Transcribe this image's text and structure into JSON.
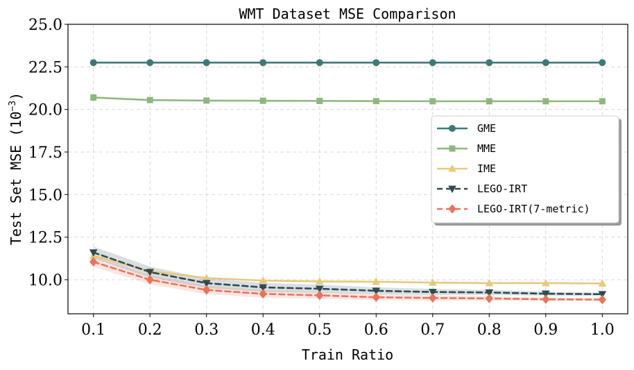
{
  "chart_data": {
    "type": "line",
    "title": "WMT Dataset MSE Comparison",
    "xlabel": "Train Ratio",
    "ylabel": "Test Set MSE (10",
    "ylabel_exponent": "−3",
    "ylabel_close": ")",
    "x": [
      0.1,
      0.2,
      0.3,
      0.4,
      0.5,
      0.6,
      0.7,
      0.8,
      0.9,
      1.0
    ],
    "x_tick_labels": [
      "0.1",
      "0.2",
      "0.3",
      "0.4",
      "0.5",
      "0.6",
      "0.7",
      "0.8",
      "0.9",
      "1.0"
    ],
    "y_ticks": [
      10.0,
      12.5,
      15.0,
      17.5,
      20.0,
      22.5,
      25.0
    ],
    "y_tick_labels": [
      "10.0",
      "12.5",
      "15.0",
      "17.5",
      "20.0",
      "22.5",
      "25.0"
    ],
    "xlim": [
      0.055,
      1.045
    ],
    "ylim": [
      8.0,
      25.0
    ],
    "grid": true,
    "legend_position": "center-right",
    "series": [
      {
        "name": "GME",
        "color": "#3a7a78",
        "marker": "circle",
        "dashed": false,
        "values": [
          22.75,
          22.75,
          22.75,
          22.75,
          22.75,
          22.75,
          22.75,
          22.75,
          22.75,
          22.75
        ]
      },
      {
        "name": "MME",
        "color": "#8db87c",
        "marker": "square",
        "dashed": false,
        "values": [
          20.7,
          20.55,
          20.52,
          20.51,
          20.5,
          20.49,
          20.48,
          20.48,
          20.48,
          20.48
        ]
      },
      {
        "name": "IME",
        "color": "#e8c97a",
        "marker": "triangle-up",
        "dashed": false,
        "values": [
          11.4,
          10.5,
          10.1,
          9.95,
          9.9,
          9.88,
          9.83,
          9.8,
          9.8,
          9.78
        ]
      },
      {
        "name": "LEGO-IRT",
        "color": "#2e4a52",
        "marker": "triangle-down",
        "dashed": true,
        "values": [
          11.6,
          10.45,
          9.8,
          9.55,
          9.47,
          9.35,
          9.28,
          9.25,
          9.18,
          9.15
        ],
        "band": 0.35
      },
      {
        "name": "LEGO-IRT(7-metric)",
        "color": "#e8735a",
        "marker": "diamond",
        "dashed": true,
        "values": [
          11.05,
          10.0,
          9.4,
          9.17,
          9.08,
          8.97,
          8.93,
          8.9,
          8.85,
          8.83
        ],
        "band": 0.3
      }
    ]
  }
}
